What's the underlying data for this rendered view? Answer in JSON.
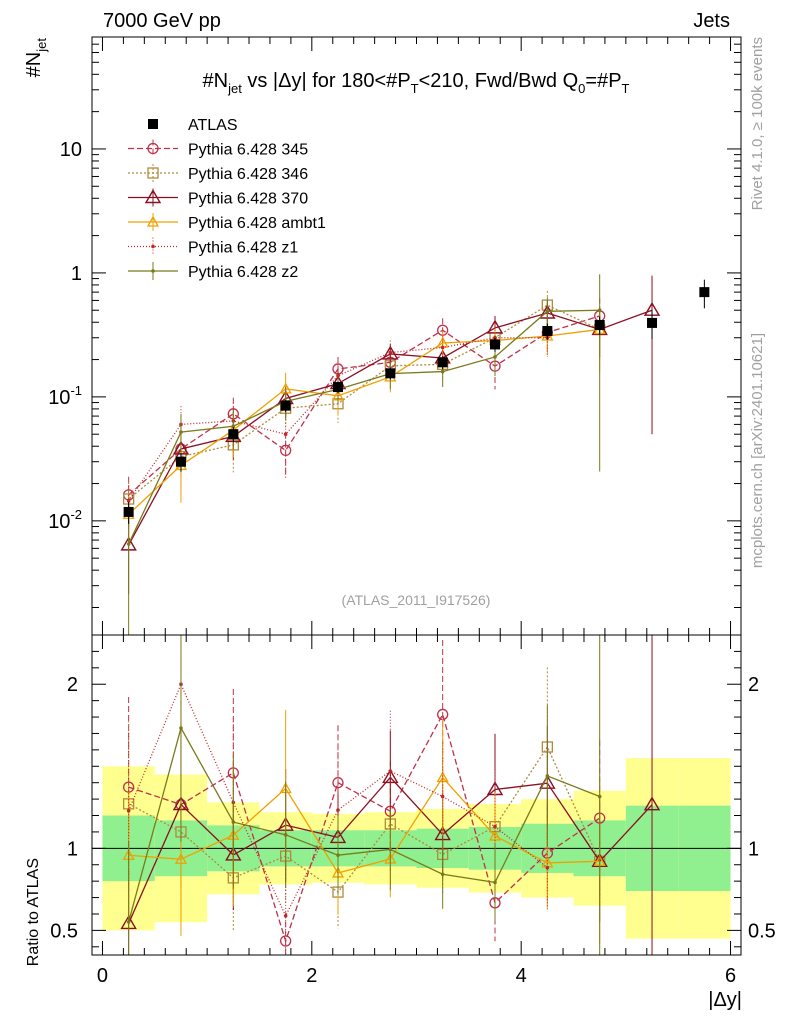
{
  "header": {
    "left": "7000 GeV pp",
    "right": "Jets"
  },
  "side": {
    "rivet": "Rivet 4.1.0, ≥ 100k events",
    "mcplots": "mcplots.cern.ch [arXiv:2401.10621]"
  },
  "chart_data": {
    "type": "line",
    "title": "#N_jet vs |Δy| for 180<#P_T<210, Fwd/Bwd Q0=#P_T",
    "title_parts": {
      "a": "#",
      "b": "N",
      "c": "jet",
      "d": " vs |Δy|  for 180<#",
      "e": "P",
      "f": "T",
      "g": "<210, Fwd/Bwd Q",
      "h": "0",
      "i": "=#",
      "j": "P",
      "k": "T"
    },
    "ylabel_parts": {
      "a": "#",
      "b": "N",
      "c": "jet"
    },
    "xlabel": "|Δy|",
    "ratio_ylabel": "Ratio to ATLAS",
    "analysis_label": "(ATLAS_2011_I917526)",
    "xlim": [
      -0.1,
      6.1
    ],
    "ylim": [
      0.0012,
      80
    ],
    "ratio_ylim": [
      0.35,
      2.3
    ],
    "x_ticks": [
      "0",
      "2",
      "4",
      "6"
    ],
    "y_ticks": [
      {
        "mant": "10",
        "exp": "-2"
      },
      {
        "mant": "10",
        "exp": "-1"
      },
      {
        "mant": "1",
        "exp": ""
      },
      {
        "mant": "10",
        "exp": ""
      }
    ],
    "ratio_ticks": [
      "0.5",
      "1",
      "2"
    ],
    "x": [
      0.25,
      0.75,
      1.25,
      1.75,
      2.25,
      2.75,
      3.25,
      3.75,
      4.25,
      4.75,
      5.25,
      5.75
    ],
    "atlas": {
      "name": "ATLAS",
      "values": [
        0.0118,
        0.03,
        0.05,
        0.085,
        0.12,
        0.155,
        0.19,
        0.265,
        0.34,
        0.38,
        0.395,
        0.7
      ],
      "band_inner": [
        0.2,
        0.17,
        0.14,
        0.11,
        0.11,
        0.11,
        0.12,
        0.13,
        0.15,
        0.17,
        0.26,
        0.26
      ],
      "band_outer": [
        0.5,
        0.45,
        0.28,
        0.22,
        0.21,
        0.22,
        0.24,
        0.27,
        0.3,
        0.35,
        0.55,
        0.55
      ]
    },
    "series": [
      {
        "name": "Pythia 6.428 345",
        "color": "#c0304a",
        "dash": "6,3",
        "marker": "circle",
        "values": [
          0.0162,
          0.038,
          0.073,
          0.037,
          0.168,
          0.19,
          0.345,
          0.177,
          0.33,
          0.45,
          null,
          null
        ],
        "err": [
          0.4,
          0.5,
          0.35,
          0.4,
          0.25,
          0.25,
          0.25,
          0.35,
          0.3,
          0.4,
          null,
          null
        ]
      },
      {
        "name": "Pythia 6.428 346",
        "color": "#b08a3c",
        "dash": "2,2",
        "marker": "square",
        "values": [
          0.015,
          0.033,
          0.041,
          0.081,
          0.088,
          0.178,
          0.183,
          0.3,
          0.55,
          0.35,
          null,
          null
        ],
        "err": [
          0.4,
          0.5,
          0.4,
          0.3,
          0.3,
          0.25,
          0.25,
          0.3,
          0.3,
          0.4,
          null,
          null
        ]
      },
      {
        "name": "Pythia 6.428 370",
        "color": "#8b0e22",
        "dash": "",
        "marker": "triangle",
        "values": [
          0.0064,
          0.038,
          0.048,
          0.097,
          0.128,
          0.222,
          0.206,
          0.36,
          0.475,
          0.35,
          0.5,
          null
        ],
        "err": [
          0.6,
          0.4,
          0.35,
          0.3,
          0.25,
          0.2,
          0.25,
          0.25,
          0.25,
          0.4,
          0.9,
          null
        ]
      },
      {
        "name": "Pythia 6.428 ambt1",
        "color": "#f0a000",
        "dash": "",
        "marker": "triangle-small",
        "values": [
          0.0113,
          0.028,
          0.054,
          0.116,
          0.102,
          0.145,
          0.272,
          0.285,
          0.31,
          0.35,
          null,
          null
        ],
        "err": [
          0.4,
          0.5,
          0.4,
          0.35,
          0.3,
          0.25,
          0.25,
          0.25,
          0.3,
          0.55,
          null,
          null
        ]
      },
      {
        "name": "Pythia 6.428 z1",
        "color": "#c02828",
        "dash": "1,2",
        "marker": "dot",
        "values": [
          0.0145,
          0.06,
          0.064,
          0.05,
          0.148,
          0.228,
          0.25,
          0.3,
          0.3,
          null,
          null,
          null
        ],
        "err": [
          0.4,
          0.4,
          0.4,
          0.55,
          0.3,
          0.25,
          0.25,
          0.3,
          0.3,
          null,
          null,
          null
        ]
      },
      {
        "name": "Pythia 6.428 z2",
        "color": "#7a7a1c",
        "dash": "",
        "marker": "dot",
        "values": [
          0.0065,
          0.052,
          0.058,
          0.092,
          0.115,
          0.154,
          0.16,
          0.21,
          0.49,
          0.5,
          null,
          null
        ],
        "err": [
          0.9,
          0.4,
          0.35,
          0.3,
          0.25,
          0.25,
          0.25,
          0.3,
          0.3,
          0.95,
          null,
          null
        ]
      }
    ],
    "legend_placement": "top-left"
  }
}
